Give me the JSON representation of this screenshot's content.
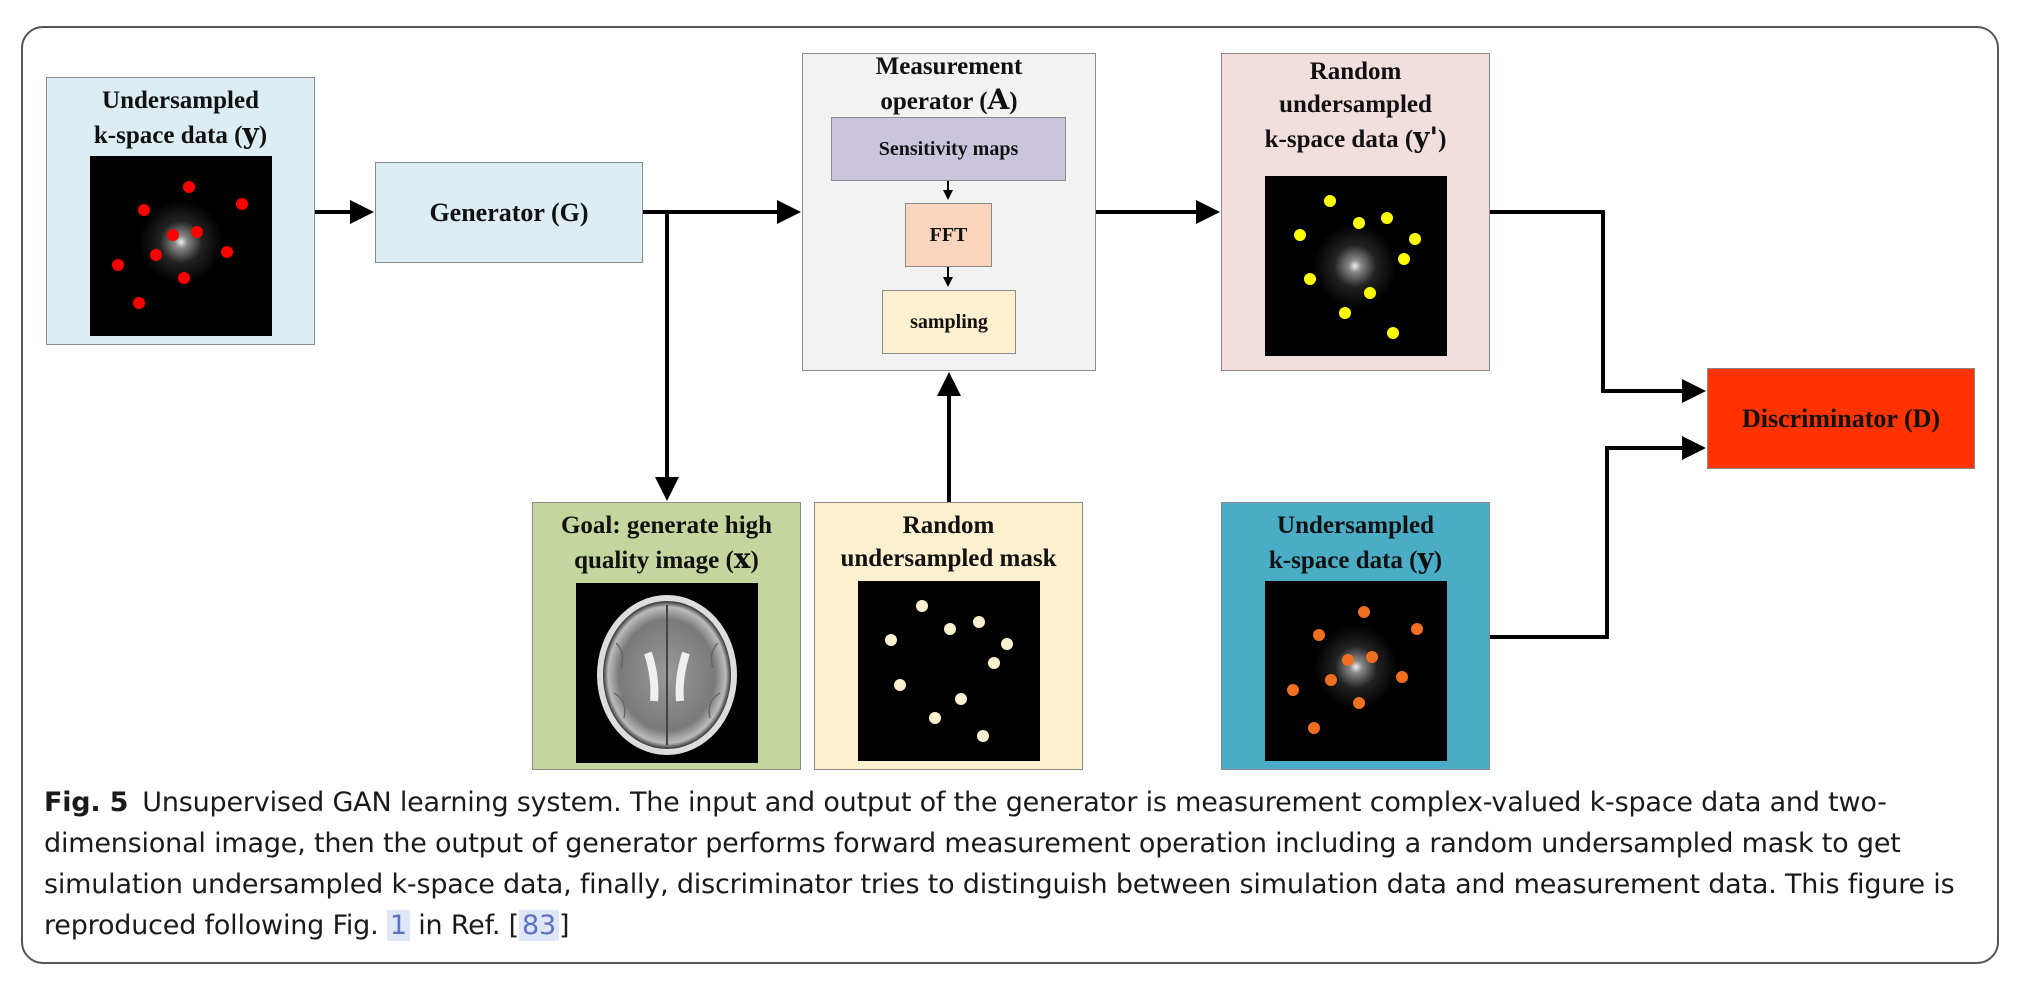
{
  "nodes": {
    "input_kspace": {
      "title": "Undersampled\nk-space data (",
      "var": "y",
      "close": ")"
    },
    "generator": {
      "label": "Generator (G)"
    },
    "measurement": {
      "title": "Measurement\noperator (",
      "var": "A",
      "close": ")"
    },
    "sensitivity": {
      "label": "Sensitivity maps"
    },
    "fft": {
      "label": "FFT"
    },
    "sampling": {
      "label": "sampling"
    },
    "random_kspace": {
      "title": "Random\nundersampled\nk-space data (",
      "var": "y'",
      "close": ")"
    },
    "discriminator": {
      "label": "Discriminator (D)"
    },
    "goal": {
      "title": "Goal: generate high\nquality image (",
      "var": "x",
      "close": ")"
    },
    "mask": {
      "title": "Random\nundersampled mask"
    },
    "real_kspace": {
      "title": "Undersampled\nk-space data (",
      "var": "y",
      "close": ")"
    }
  },
  "colors": {
    "input_kspace_bg": "#dcedf3",
    "generator_bg": "#dcedf3",
    "measurement_bg": "#f2f2f2",
    "sensitivity_bg": "#cbc4dd",
    "fft_bg": "#fad5bd",
    "sampling_bg": "#fdf0cf",
    "random_kspace_bg": "#f2dedd",
    "discriminator_bg": "#ff3300",
    "goal_bg": "#c4d69e",
    "mask_bg": "#fdf0cf",
    "real_kspace_bg": "#4bacc6",
    "red_dot": "#ff0000",
    "yellow_dot": "#ffff00",
    "mask_dot": "#fdf0cf",
    "orange_dot": "#f07020"
  },
  "caption": {
    "fig_label": "Fig. 5",
    "text_1": "Unsupervised GAN learning system. The input and output of the generator is measurement complex-valued k-space data and two-dimensional image, then the output of generator performs forward measurement operation including a random undersampled mask to get simulation undersampled k-space data, finally, discriminator tries to distinguish between simulation data and measurement data. This figure is reproduced following Fig. ",
    "ref_fig": "1",
    "text_2": " in Ref. [",
    "ref_cite": "83",
    "text_3": "]"
  }
}
